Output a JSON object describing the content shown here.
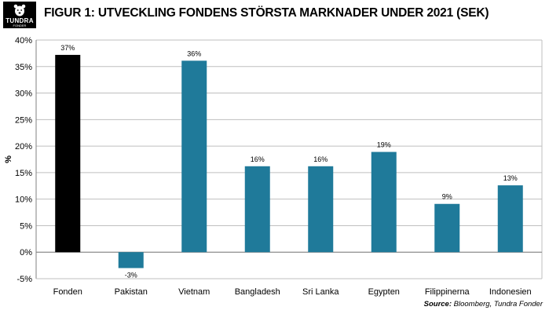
{
  "header": {
    "logo_text": "TUNDRA",
    "logo_sub": "FONDER",
    "title": "FIGUR 1: UTVECKLING FONDENS STÖRSTA MARKNADER UNDER 2021 (SEK)"
  },
  "source": {
    "label": "Source:",
    "text": "Bloomberg, Tundra Fonder"
  },
  "chart_data": {
    "type": "bar",
    "title": "FIGUR 1: UTVECKLING FONDENS STÖRSTA MARKNADER UNDER 2021 (SEK)",
    "xlabel": "",
    "ylabel": "%",
    "categories": [
      "Fonden",
      "Pakistan",
      "Vietnam",
      "Bangladesh",
      "Sri Lanka",
      "Egypten",
      "Filippinerna",
      "Indonesien"
    ],
    "values": [
      37.2,
      -3.0,
      36.1,
      16.2,
      16.2,
      18.9,
      9.1,
      12.6
    ],
    "data_labels": [
      "37%",
      "-3%",
      "36%",
      "16%",
      "16%",
      "19%",
      "9%",
      "13%"
    ],
    "ylim": [
      -5,
      40
    ],
    "yticks": [
      -5,
      0,
      5,
      10,
      15,
      20,
      25,
      30,
      35,
      40
    ],
    "ytick_labels": [
      "-5%",
      "0%",
      "5%",
      "10%",
      "15%",
      "20%",
      "25%",
      "30%",
      "35%",
      "40%"
    ],
    "grid": true,
    "legend": "none",
    "colors": {
      "highlight": "#000000",
      "bars": "#1f7a9a",
      "grid": "#bfbfbf"
    }
  }
}
